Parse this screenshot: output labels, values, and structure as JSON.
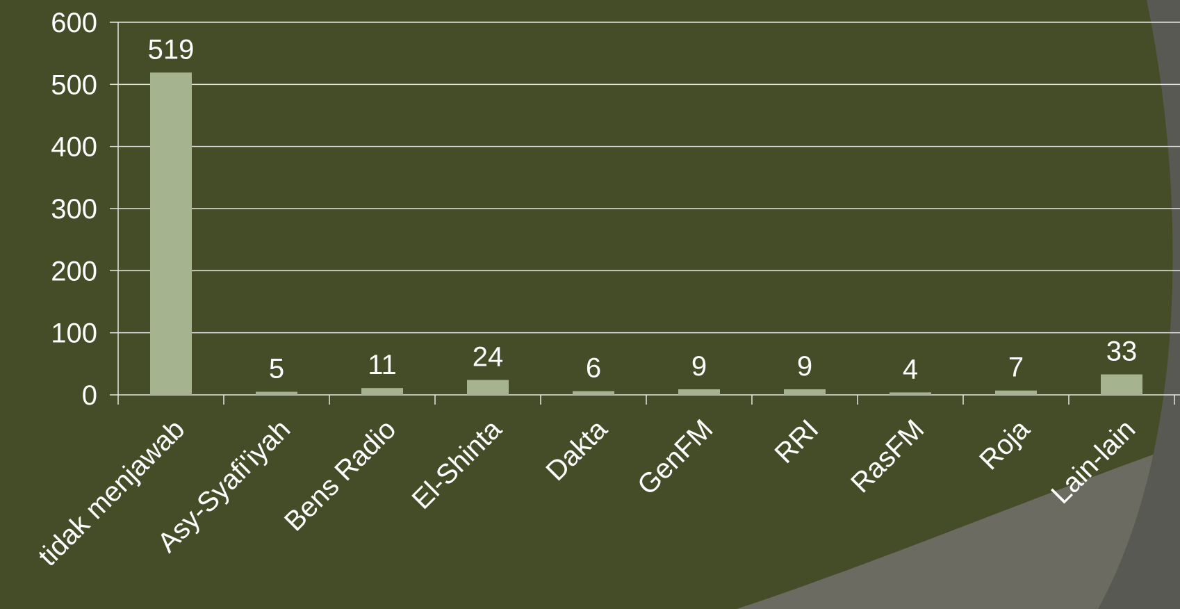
{
  "chart_data": {
    "type": "bar",
    "title": "",
    "xlabel": "",
    "ylabel": "",
    "categories": [
      "tidak menjawab",
      "Asy-Syafi'iyah",
      "Bens Radio",
      "El-Shinta",
      "Dakta",
      "GenFM",
      "RRI",
      "RasFM",
      "Roja",
      "Lain-lain"
    ],
    "values": [
      519,
      5,
      11,
      24,
      6,
      9,
      9,
      4,
      7,
      33
    ],
    "ylim": [
      0,
      600
    ],
    "yticks": [
      "0",
      "100",
      "200",
      "300",
      "400",
      "500",
      "600"
    ],
    "grid": true,
    "legend": "none"
  },
  "colors": {
    "background": "#454c28",
    "bar": "#a6b38f",
    "grid": "#e6e6e6",
    "text": "#ffffff",
    "decor_light": "#6b6b62",
    "decor_dark": "#595953"
  }
}
